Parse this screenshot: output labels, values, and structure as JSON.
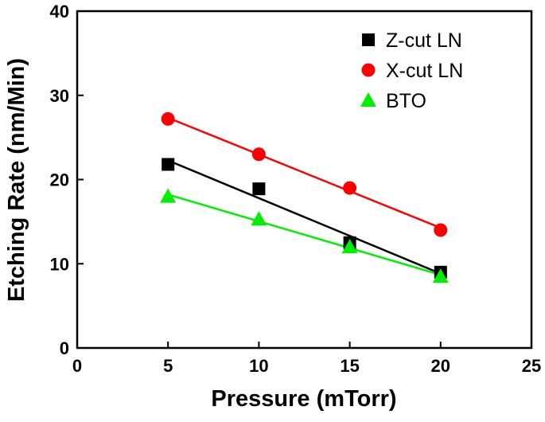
{
  "chart_data": {
    "type": "scatter",
    "xlabel": "Pressure (mTorr)",
    "ylabel": "Etching Rate (nm/Min)",
    "xlim": [
      0,
      25
    ],
    "ylim": [
      0,
      40
    ],
    "xticks": [
      0,
      5,
      10,
      15,
      20,
      25
    ],
    "yticks": [
      0,
      10,
      20,
      30,
      40
    ],
    "grid": false,
    "legend_position": "top-right",
    "linear_fit": true,
    "series": [
      {
        "name": "Z-cut LN",
        "marker": "square",
        "color": "#000000",
        "x": [
          5,
          10,
          15,
          20
        ],
        "y": [
          21.8,
          18.9,
          12.5,
          9.0
        ]
      },
      {
        "name": "X-cut LN",
        "marker": "circle",
        "color": "#ff0000",
        "x": [
          5,
          10,
          15,
          20
        ],
        "y": [
          27.2,
          23.0,
          19.0,
          14.0
        ]
      },
      {
        "name": "BTO",
        "marker": "triangle",
        "color": "#00ee00",
        "x": [
          5,
          10,
          15,
          20
        ],
        "y": [
          18.0,
          15.3,
          12.0,
          8.5
        ]
      }
    ]
  }
}
